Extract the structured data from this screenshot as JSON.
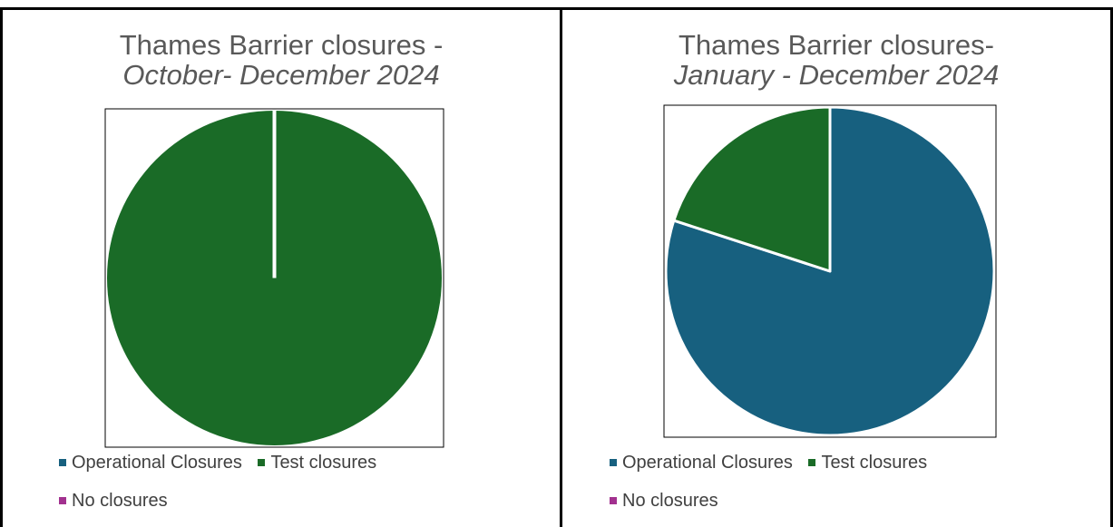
{
  "colors": {
    "operational": "#17607f",
    "test": "#1a6b27",
    "none": "#a2318f"
  },
  "chart_data": [
    {
      "type": "pie",
      "title_line1": "Thames Barrier closures -",
      "title_line2": "October- December 2024",
      "legend": [
        "Operational Closures",
        "Test closures",
        "No closures"
      ],
      "slices": [
        {
          "name": "Operational Closures",
          "value": 0
        },
        {
          "name": "Test closures",
          "value": 100
        },
        {
          "name": "No closures",
          "value": 0
        }
      ],
      "legend_placement": "bottom"
    },
    {
      "type": "pie",
      "title_line1": "Thames Barrier closures-",
      "title_line2": "January - December 2024",
      "legend": [
        "Operational Closures",
        "Test closures",
        "No closures"
      ],
      "slices": [
        {
          "name": "Operational Closures",
          "value": 80
        },
        {
          "name": "Test closures",
          "value": 20
        },
        {
          "name": "No closures",
          "value": 0
        }
      ],
      "legend_placement": "bottom"
    }
  ]
}
